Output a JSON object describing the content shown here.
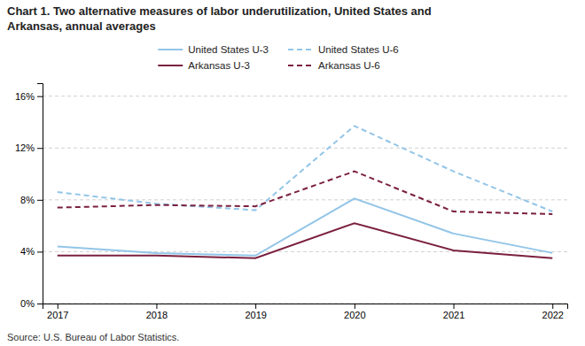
{
  "chart_data": {
    "type": "line",
    "title": [
      "Chart 1. Two alternative measures of labor underutilization, United States and",
      "Arkansas, annual averages"
    ],
    "annotations": [
      "Source: U.S. Bureau of Labor Statistics."
    ],
    "x": [
      2017,
      2018,
      2019,
      2020,
      2021,
      2022
    ],
    "series": [
      {
        "name": "United States U-3",
        "color": "#92C5E8",
        "line_style": "solid",
        "values": [
          4.4,
          3.9,
          3.7,
          8.1,
          5.4,
          3.9
        ]
      },
      {
        "name": "United States U-6",
        "color": "#92C5E8",
        "line_style": "dashed",
        "values": [
          8.6,
          7.7,
          7.2,
          13.7,
          10.2,
          7.1
        ]
      },
      {
        "name": "Arkansas U-3",
        "color": "#7B2040",
        "line_style": "solid",
        "values": [
          3.7,
          3.7,
          3.5,
          6.2,
          4.1,
          3.5
        ]
      },
      {
        "name": "Arkansas U-6",
        "color": "#7B2040",
        "line_style": "dashed",
        "values": [
          7.4,
          7.6,
          7.5,
          10.2,
          7.1,
          6.9
        ]
      }
    ],
    "xlim": [
      2016.85,
      2022.15
    ],
    "xticks": [
      2017,
      2018,
      2019,
      2020,
      2021,
      2022
    ],
    "ylim": [
      0,
      17
    ],
    "yticks": [
      {
        "value": 0,
        "label": "0%"
      },
      {
        "value": 4,
        "label": "4%"
      },
      {
        "value": 8,
        "label": "8%"
      },
      {
        "value": 12,
        "label": "12%"
      },
      {
        "value": 16,
        "label": "16%"
      }
    ],
    "grid": "y",
    "legend": "top"
  }
}
